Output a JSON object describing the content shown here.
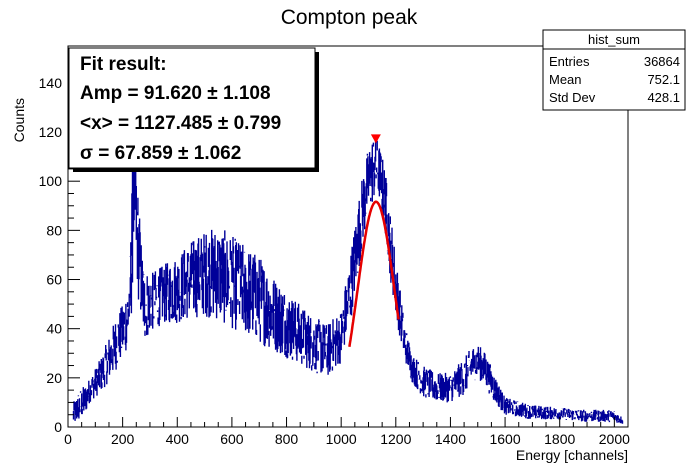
{
  "chart_data": {
    "type": "line",
    "title": "Compton peak",
    "xlabel": "Energy [channels]",
    "ylabel": "Counts",
    "xlim": [
      0,
      2050
    ],
    "ylim": [
      0,
      155
    ],
    "x_ticks": [
      0,
      200,
      400,
      600,
      800,
      1000,
      1200,
      1400,
      1600,
      1800,
      2000
    ],
    "y_ticks": [
      0,
      20,
      40,
      60,
      80,
      100,
      120,
      140
    ],
    "grid": false,
    "colors": {
      "histogram": "#000099",
      "fit": "#e60000",
      "marker": "#ff0000"
    },
    "histogram_envelope": {
      "x": [
        20,
        40,
        60,
        80,
        100,
        120,
        140,
        160,
        180,
        200,
        220,
        230,
        240,
        250,
        260,
        270,
        280,
        300,
        320,
        350,
        400,
        450,
        500,
        550,
        600,
        650,
        700,
        750,
        800,
        850,
        900,
        950,
        1000,
        1030,
        1060,
        1080,
        1100,
        1120,
        1130,
        1140,
        1160,
        1180,
        1200,
        1230,
        1260,
        1300,
        1350,
        1400,
        1450,
        1480,
        1500,
        1530,
        1560,
        1600,
        1700,
        1800,
        1900,
        2000,
        2030
      ],
      "low": [
        0,
        2,
        4,
        10,
        12,
        14,
        17,
        20,
        24,
        28,
        32,
        38,
        70,
        62,
        48,
        40,
        34,
        38,
        40,
        42,
        42,
        44,
        45,
        43,
        40,
        37,
        34,
        31,
        28,
        25,
        22,
        20,
        26,
        40,
        60,
        75,
        86,
        92,
        94,
        92,
        80,
        60,
        45,
        28,
        18,
        12,
        10,
        10,
        13,
        18,
        20,
        16,
        10,
        5,
        3,
        3,
        2,
        2,
        1
      ],
      "high": [
        10,
        15,
        17,
        20,
        24,
        28,
        34,
        40,
        46,
        50,
        60,
        80,
        125,
        108,
        90,
        74,
        66,
        62,
        64,
        66,
        70,
        76,
        80,
        82,
        78,
        74,
        70,
        62,
        56,
        50,
        45,
        42,
        48,
        68,
        90,
        104,
        114,
        120,
        118,
        115,
        106,
        88,
        70,
        44,
        30,
        25,
        22,
        22,
        28,
        33,
        34,
        30,
        22,
        12,
        9,
        8,
        7,
        7,
        4
      ]
    },
    "fit_curve": {
      "amp": 91.62,
      "mean": 1127.485,
      "sigma": 67.859,
      "x_range": [
        1030,
        1210
      ]
    },
    "peak_marker": {
      "x": 1127,
      "y": 117
    },
    "stats_box": {
      "name": "hist_sum",
      "rows": [
        {
          "label": "Entries",
          "value": "36864"
        },
        {
          "label": "Mean",
          "value": "752.1"
        },
        {
          "label": "Std Dev",
          "value": "428.1"
        }
      ]
    },
    "fit_box": {
      "line1": "Fit result:",
      "line2": "Amp = 91.620 ± 1.108",
      "line3": "<x> = 1127.485 ± 0.799",
      "line4": "σ = 67.859 ± 1.062"
    }
  }
}
